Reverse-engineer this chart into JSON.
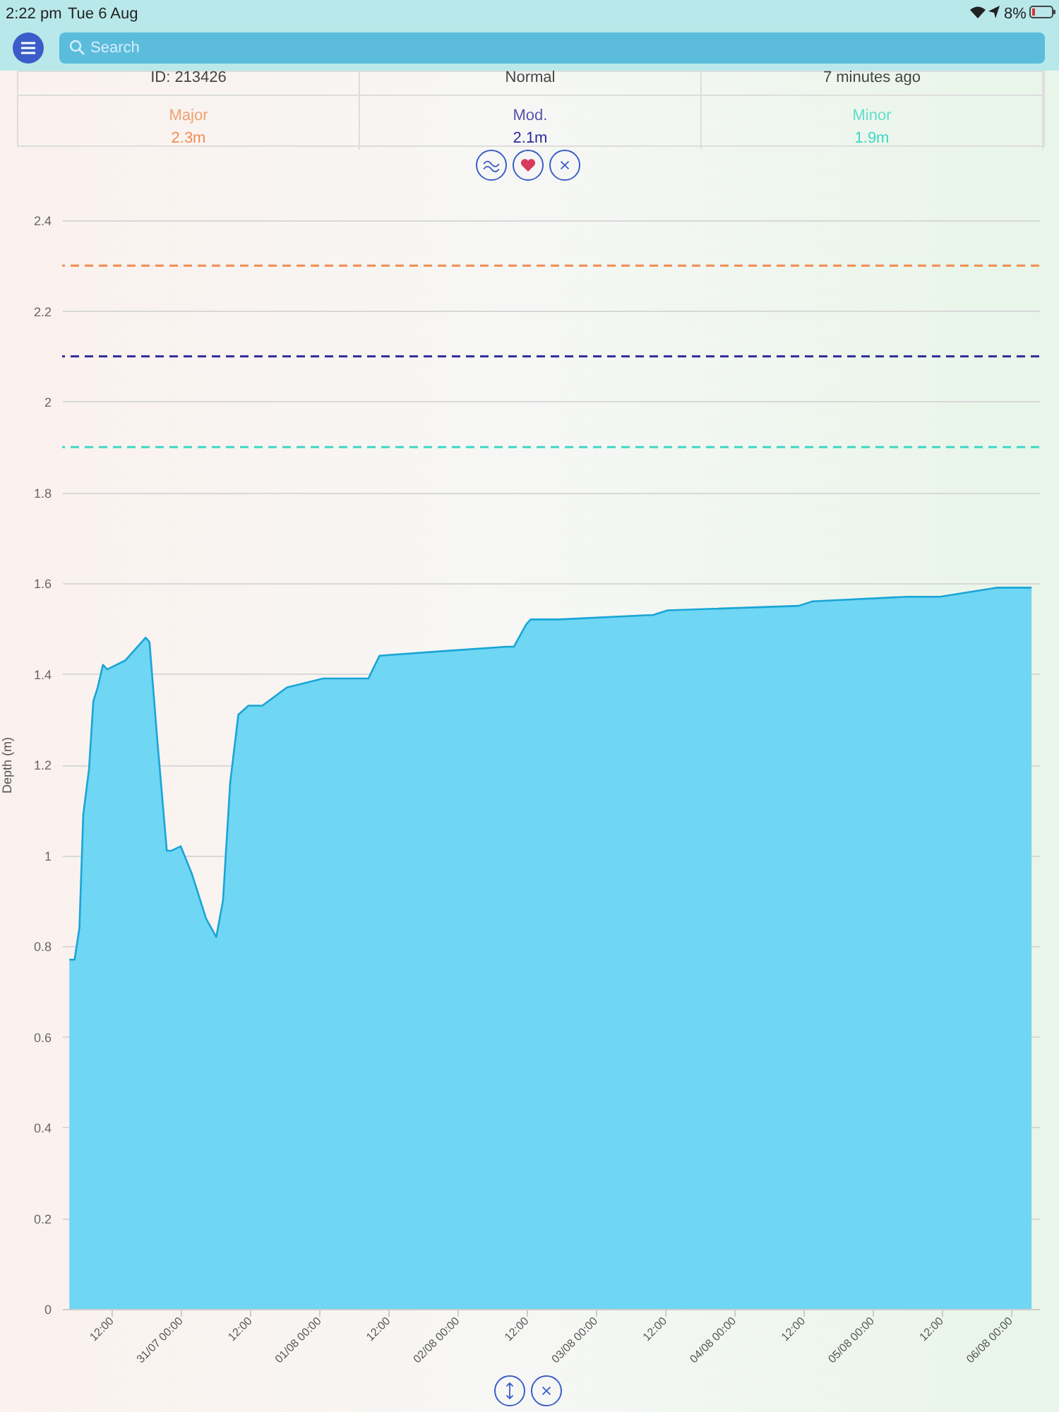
{
  "chart_data": {
    "type": "area",
    "ylabel": "Depth (m)",
    "x": [
      "--07-30T04:40",
      "--07-30T05:35",
      "--07-30T06:25",
      "--07-30T07:05",
      "--07-30T08:05",
      "--07-30T08:50",
      "--07-30T09:35",
      "--07-30T10:30",
      "--07-30T11:15",
      "--07-30T14:25",
      "--07-30T17:55",
      "--07-30T18:35",
      "--07-30T19:50",
      "--07-30T21:35",
      "--07-30T22:20",
      "--07-31T00:00",
      "--07-31T01:55",
      "--07-31T04:25",
      "--07-31T06:10",
      "--07-31T07:20",
      "--07-31T08:35",
      "--07-31T10:00",
      "--07-31T11:45",
      "--07-31T14:10",
      "--07-31T18:25",
      "--08-01T00:45",
      "--08-01T08:35",
      "--08-01T09:20",
      "--08-01T10:30",
      "--08-01T21:20",
      "--08-02T08:35",
      "--08-02T09:50",
      "--08-02T12:00",
      "--08-02T12:45",
      "--08-02T17:35",
      "--08-03T10:00",
      "--08-03T12:30",
      "--08-04T11:15",
      "--08-04T13:40",
      "--08-05T06:05",
      "--08-05T11:45",
      "--08-05T21:35",
      "--08-06T03:40"
    ],
    "series": [
      {
        "color": "#6fd6f3",
        "values": [
          0.77,
          0.77,
          0.84,
          1.09,
          1.19,
          1.34,
          1.37,
          1.42,
          1.41,
          1.43,
          1.48,
          1.47,
          1.27,
          1.01,
          1.01,
          1.02,
          0.96,
          0.86,
          0.82,
          0.9,
          1.16,
          1.31,
          1.33,
          1.33,
          1.37,
          1.39,
          1.39,
          1.41,
          1.44,
          1.45,
          1.46,
          1.46,
          1.51,
          1.52,
          1.52,
          1.53,
          1.54,
          1.55,
          1.56,
          1.57,
          1.57,
          1.59,
          1.59
        ]
      }
    ],
    "xlim": [
      "--07-30T03:25",
      "--08-06T05:00"
    ],
    "xticks": [
      {
        "value": "--07-30T12:00",
        "label": "12:00"
      },
      {
        "value": "--07-31T00:00",
        "label": "31/07 00:00"
      },
      {
        "value": "--07-31T12:00",
        "label": "12:00"
      },
      {
        "value": "--08-01T00:00",
        "label": "01/08 00:00"
      },
      {
        "value": "--08-01T12:00",
        "label": "12:00"
      },
      {
        "value": "--08-02T00:00",
        "label": "02/08 00:00"
      },
      {
        "value": "--08-02T12:00",
        "label": "12:00"
      },
      {
        "value": "--08-03T00:00",
        "label": "03/08 00:00"
      },
      {
        "value": "--08-03T12:00",
        "label": "12:00"
      },
      {
        "value": "--08-04T00:00",
        "label": "04/08 00:00"
      },
      {
        "value": "--08-04T12:00",
        "label": "12:00"
      },
      {
        "value": "--08-05T00:00",
        "label": "05/08 00:00"
      },
      {
        "value": "--08-05T12:00",
        "label": "12:00"
      },
      {
        "value": "--08-06T00:00",
        "label": "06/08 00:00"
      }
    ],
    "ylim": [
      0,
      2.4
    ],
    "yticks": [
      0,
      0.2,
      0.4,
      0.6,
      0.8,
      1,
      1.2,
      1.4,
      1.6,
      1.8,
      2,
      2.2,
      2.4
    ],
    "grid": "y",
    "marker": "none",
    "line_style": "solid",
    "ref_lines": [
      {
        "axis": "y",
        "value": 2.3,
        "label": "Major",
        "color": "#f08c50",
        "line_style": "dashed"
      },
      {
        "axis": "y",
        "value": 2.1,
        "label": "Mod.",
        "color": "#2e2a9a",
        "line_style": "dashed"
      },
      {
        "axis": "y",
        "value": 1.9,
        "label": "Minor",
        "color": "#3ed8c6",
        "line_style": "dashed"
      }
    ],
    "annotations": [
      "2:22 pm",
      "Tue 6 Aug",
      "8%",
      "Search",
      "ID: 213426",
      "Normal",
      "7 minutes ago",
      "2.3m",
      "2.1m",
      "1.9m"
    ]
  }
}
